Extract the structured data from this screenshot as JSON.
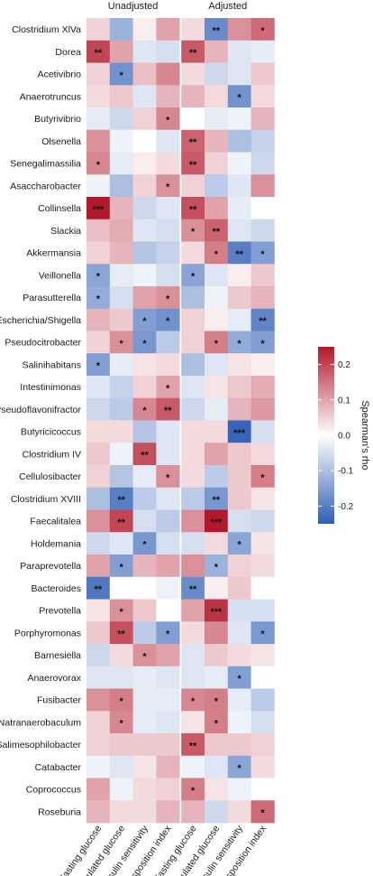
{
  "chart_data": {
    "type": "heatmap",
    "groups": [
      "Unadjusted",
      "Adjusted"
    ],
    "columns": [
      "Fasting glucose",
      "Stimulated glucose",
      "Insulin sensitivity",
      "Disposition index",
      "Fasting glucose",
      "Stimulated glucose",
      "Insulin sensitivity",
      "Disposition index"
    ],
    "rows": [
      "Clostridium XlVa",
      "Dorea",
      "Acetivibrio",
      "Anaerotruncus",
      "Butyrivibrio",
      "Olsenella",
      "Senegalimassilia",
      "Asaccharobacter",
      "Collinsella",
      "Slackia",
      "Akkermansia",
      "Veillonella",
      "Parasutterella",
      "Escherichia/Shigella",
      "Pseudocitrobacter",
      "Salinihabitans",
      "Intestinimonas",
      "Pseudoflavonifractor",
      "Butyricicoccus",
      "Clostridium IV",
      "Cellulosibacter",
      "Clostridium XVIII",
      "Faecalitalea",
      "Holdemania",
      "Paraprevotella",
      "Bacteroides",
      "Prevotella",
      "Porphyromonas",
      "Barnesiella",
      "Anaerovorax",
      "Fusibacter",
      "Natranaerobaculum",
      "Salimesophilobacter",
      "Catabacter",
      "Coprococcus",
      "Roseburia"
    ],
    "values": [
      [
        0.05,
        -0.12,
        0.02,
        0.1,
        0.04,
        -0.18,
        0.12,
        0.16
      ],
      [
        0.2,
        0.1,
        -0.04,
        -0.05,
        0.18,
        0.08,
        -0.04,
        -0.03
      ],
      [
        0.05,
        -0.17,
        0.07,
        0.13,
        0.04,
        -0.06,
        -0.04,
        0.06
      ],
      [
        0.04,
        0.06,
        -0.04,
        0.08,
        0.08,
        0.04,
        -0.17,
        0.04
      ],
      [
        -0.03,
        -0.06,
        0.05,
        0.13,
        0.0,
        -0.03,
        -0.02,
        0.08
      ],
      [
        0.12,
        -0.02,
        0.0,
        -0.04,
        0.17,
        0.08,
        -0.1,
        -0.07
      ],
      [
        0.13,
        -0.03,
        0.02,
        0.04,
        0.18,
        0.05,
        -0.02,
        -0.06
      ],
      [
        -0.02,
        -0.1,
        0.05,
        0.12,
        0.05,
        -0.08,
        -0.04,
        0.12
      ],
      [
        0.25,
        0.08,
        -0.06,
        -0.04,
        0.19,
        0.1,
        -0.03,
        0.0
      ],
      [
        0.07,
        0.09,
        -0.04,
        -0.05,
        0.12,
        0.17,
        -0.04,
        -0.06
      ],
      [
        0.05,
        0.08,
        -0.09,
        -0.07,
        0.04,
        0.14,
        -0.2,
        -0.15
      ],
      [
        -0.14,
        -0.03,
        -0.02,
        -0.05,
        -0.14,
        -0.04,
        0.02,
        0.06
      ],
      [
        -0.13,
        -0.05,
        0.1,
        0.12,
        -0.1,
        -0.02,
        0.06,
        0.08
      ],
      [
        0.08,
        0.06,
        -0.15,
        -0.17,
        0.05,
        0.02,
        -0.03,
        -0.19
      ],
      [
        0.05,
        0.12,
        -0.16,
        -0.08,
        0.05,
        0.14,
        -0.13,
        -0.15
      ],
      [
        -0.15,
        -0.03,
        0.03,
        0.04,
        -0.1,
        -0.04,
        0.03,
        0.02
      ],
      [
        -0.04,
        -0.07,
        0.05,
        0.1,
        -0.04,
        0.03,
        0.06,
        0.09
      ],
      [
        -0.06,
        -0.08,
        0.13,
        0.18,
        -0.06,
        -0.03,
        0.08,
        0.11
      ],
      [
        0.04,
        0.04,
        -0.09,
        -0.04,
        0.04,
        0.04,
        -0.24,
        -0.05
      ],
      [
        0.06,
        -0.02,
        0.19,
        -0.04,
        0.04,
        0.1,
        0.06,
        0.04
      ],
      [
        0.05,
        -0.09,
        -0.03,
        0.12,
        0.04,
        -0.08,
        0.06,
        0.14
      ],
      [
        -0.1,
        -0.2,
        -0.08,
        -0.04,
        -0.08,
        -0.16,
        0.06,
        0.03
      ],
      [
        0.12,
        0.2,
        -0.05,
        -0.08,
        0.12,
        0.25,
        -0.05,
        -0.06
      ],
      [
        -0.06,
        -0.04,
        -0.16,
        -0.05,
        -0.05,
        0.04,
        -0.14,
        0.03
      ],
      [
        0.1,
        -0.15,
        0.08,
        0.1,
        0.12,
        -0.12,
        0.05,
        0.04
      ],
      [
        -0.21,
        0.0,
        0.0,
        -0.02,
        -0.18,
        0.02,
        0.06,
        0.0
      ],
      [
        0.03,
        0.12,
        0.06,
        0.0,
        0.1,
        0.22,
        -0.05,
        -0.05
      ],
      [
        0.06,
        0.19,
        -0.08,
        -0.15,
        0.04,
        0.13,
        -0.04,
        -0.16
      ],
      [
        -0.06,
        0.04,
        0.12,
        0.1,
        -0.04,
        0.06,
        0.04,
        0.03
      ],
      [
        -0.04,
        -0.04,
        -0.03,
        -0.04,
        -0.04,
        -0.03,
        -0.15,
        0.0
      ],
      [
        0.12,
        0.14,
        -0.03,
        -0.03,
        0.13,
        0.14,
        -0.03,
        -0.08
      ],
      [
        0.05,
        0.13,
        -0.03,
        -0.04,
        0.03,
        0.14,
        -0.02,
        -0.05
      ],
      [
        0.05,
        0.06,
        0.06,
        0.06,
        0.18,
        0.06,
        0.06,
        0.05
      ],
      [
        -0.02,
        -0.04,
        0.03,
        0.08,
        -0.02,
        -0.04,
        -0.14,
        0.04
      ],
      [
        0.1,
        -0.02,
        0.04,
        0.05,
        0.14,
        0.03,
        -0.02,
        0.0
      ],
      [
        0.08,
        0.04,
        0.04,
        0.08,
        0.08,
        -0.06,
        0.04,
        0.16
      ]
    ],
    "stars": [
      [
        "",
        "",
        "",
        "",
        "",
        "**",
        "",
        "*"
      ],
      [
        "**",
        "",
        "",
        "",
        "**",
        "",
        "",
        ""
      ],
      [
        "",
        "*",
        "",
        "",
        "",
        "",
        "",
        ""
      ],
      [
        "",
        "",
        "",
        "",
        "",
        "",
        "*",
        ""
      ],
      [
        "",
        "",
        "",
        "*",
        "",
        "",
        "",
        ""
      ],
      [
        "",
        "",
        "",
        "",
        "**",
        "",
        "",
        ""
      ],
      [
        "*",
        "",
        "",
        "",
        "**",
        "",
        "",
        ""
      ],
      [
        "",
        "",
        "",
        "*",
        "",
        "",
        "",
        ""
      ],
      [
        "***",
        "",
        "",
        "",
        "**",
        "",
        "",
        ""
      ],
      [
        "",
        "",
        "",
        "",
        "*",
        "**",
        "",
        ""
      ],
      [
        "",
        "",
        "",
        "",
        "",
        "*",
        "**",
        "*"
      ],
      [
        "*",
        "",
        "",
        "",
        "*",
        "",
        "",
        ""
      ],
      [
        "*",
        "",
        "",
        "*",
        "",
        "",
        "",
        ""
      ],
      [
        "",
        "",
        "*",
        "*",
        "",
        "",
        "",
        "**"
      ],
      [
        "",
        "*",
        "*",
        "",
        "",
        "*",
        "*",
        "*"
      ],
      [
        "*",
        "",
        "",
        "",
        "",
        "",
        "",
        ""
      ],
      [
        "",
        "",
        "",
        "*",
        "",
        "",
        "",
        ""
      ],
      [
        "",
        "",
        "*",
        "**",
        "",
        "",
        "",
        ""
      ],
      [
        "",
        "",
        "",
        "",
        "",
        "",
        "***",
        ""
      ],
      [
        "",
        "",
        "**",
        "",
        "",
        "",
        "",
        ""
      ],
      [
        "",
        "",
        "",
        "*",
        "",
        "",
        "",
        "*"
      ],
      [
        "",
        "**",
        "",
        "",
        "",
        "**",
        "",
        ""
      ],
      [
        "",
        "**",
        "",
        "",
        "",
        "***",
        "",
        ""
      ],
      [
        "",
        "",
        "*",
        "",
        "",
        "",
        "*",
        ""
      ],
      [
        "",
        "*",
        "",
        "",
        "",
        "*",
        "",
        ""
      ],
      [
        "**",
        "",
        "",
        "",
        "**",
        "",
        "",
        ""
      ],
      [
        "",
        "*",
        "",
        "",
        "",
        "***",
        "",
        ""
      ],
      [
        "",
        "**",
        "",
        "*",
        "",
        "",
        "",
        "*"
      ],
      [
        "",
        "",
        "*",
        "",
        "",
        "",
        "",
        ""
      ],
      [
        "",
        "",
        "",
        "",
        "",
        "",
        "*",
        ""
      ],
      [
        "",
        "*",
        "",
        "",
        "*",
        "*",
        "",
        ""
      ],
      [
        "",
        "*",
        "",
        "",
        "",
        "*",
        "",
        ""
      ],
      [
        "",
        "",
        "",
        "",
        "**",
        "",
        "",
        ""
      ],
      [
        "",
        "",
        "",
        "",
        "",
        "",
        "*",
        ""
      ],
      [
        "",
        "",
        "",
        "",
        "*",
        "",
        "",
        ""
      ],
      [
        "",
        "",
        "",
        "",
        "",
        "",
        "",
        "*"
      ]
    ],
    "legend": {
      "title": "Spearman's rho",
      "range": [
        -0.25,
        0.25
      ],
      "ticks": [
        0.2,
        0.1,
        0.0,
        -0.1,
        -0.2
      ],
      "tick_labels": [
        "0.2",
        "0.1",
        "0.0",
        "-0.1",
        "-0.2"
      ],
      "placement": "right"
    },
    "colors": {
      "low": "#2f5eb5",
      "mid": "#ffffff",
      "high": "#b2182b"
    },
    "title": "",
    "xlabel": "",
    "ylabel": ""
  }
}
